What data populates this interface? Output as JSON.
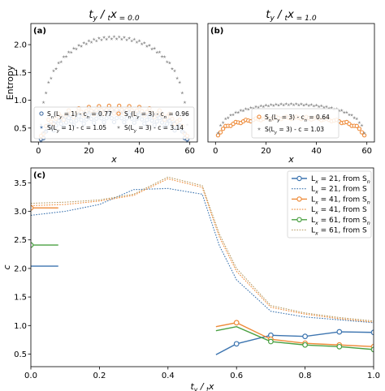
{
  "chart_data": [
    {
      "panel_label": "(a)",
      "type": "scatter",
      "title": "t_y / t_x = 0.0",
      "title_parts": [
        "t",
        "y",
        " / ",
        "t",
        "x",
        " = 0.0"
      ],
      "xlabel": "x",
      "ylabel": "Entropy",
      "xlim": [
        -3,
        63
      ],
      "ylim": [
        0.25,
        2.38
      ],
      "xticks": [
        0,
        20,
        40,
        60
      ],
      "yticks": [
        0.5,
        1.0,
        1.5,
        2.0
      ],
      "yticklabels": [
        "0.5",
        "1.0",
        "1.5",
        "2.0"
      ],
      "legend_position": "bottom",
      "series": [
        {
          "label": "S_n(L_y = 1) - c_n = 0.77",
          "legend_parts": [
            [
              "S",
              "n",
              "(L",
              "y",
              " = 1) - c",
              "n",
              " = 0.77"
            ]
          ],
          "color": "#4a72a6",
          "marker": "circle-open",
          "kind": "entropy",
          "L": 60,
          "c": 0.77,
          "b": 0.3,
          "osc": 0.07,
          "osc_period": 4
        },
        {
          "label": "S_n(L_y = 3) - c_n = 0.96",
          "legend_parts": [
            [
              "S",
              "n",
              "(L",
              "y",
              " = 3) - c",
              "n",
              " = 0.96"
            ]
          ],
          "color": "#ee8a38",
          "marker": "circle-open",
          "kind": "entropy",
          "L": 60,
          "c": 0.96,
          "b": 0.36,
          "osc": 0.07,
          "osc_period": 4
        },
        {
          "label": "S(L_y = 1) - c = 1.05",
          "legend_parts": [
            [
              "S(L",
              "y",
              " = 1) - c = 1.05"
            ]
          ],
          "color": "#4a72a6",
          "marker": "star",
          "kind": "entropy",
          "L": 60,
          "c": 1.05,
          "b": 0.28,
          "osc": 0.02,
          "osc_period": 2
        },
        {
          "label": "S(L_y = 3) - c = 3.14",
          "legend_parts": [
            [
              "S(L",
              "y",
              " = 3) - c = 3.14"
            ]
          ],
          "color": "#8a8a8a",
          "marker": "star",
          "kind": "entropy",
          "L": 60,
          "c": 3.14,
          "b": 0.58,
          "osc": 0.02,
          "osc_period": 2
        }
      ]
    },
    {
      "panel_label": "(b)",
      "type": "scatter",
      "title": "t_y / t_x = 1.0",
      "title_parts": [
        "t",
        "y",
        " / ",
        "t",
        "x",
        " = 1.0"
      ],
      "xlabel": "x",
      "ylabel": "",
      "xlim": [
        -3,
        63
      ],
      "ylim": [
        0.25,
        2.38
      ],
      "xticks": [
        0,
        20,
        40,
        60
      ],
      "yticks": [],
      "legend_position": "bottom",
      "series": [
        {
          "label": "S_n(L_y = 3) - c_n = 0.64",
          "legend_parts": [
            [
              "S",
              "n",
              "(L",
              "y",
              " = 3) - c",
              "n",
              " = 0.64"
            ]
          ],
          "color": "#ee8a38",
          "marker": "circle-open",
          "kind": "entropy",
          "L": 60,
          "c": 0.64,
          "b": 0.37,
          "osc": 0.02,
          "osc_period": 4
        },
        {
          "label": "S(L_y = 3) - c = 1.03",
          "legend_parts": [
            [
              "S(L",
              "y",
              " = 3) - c = 1.03"
            ]
          ],
          "color": "#8a8a8a",
          "marker": "star",
          "kind": "entropy",
          "L": 60,
          "c": 1.03,
          "b": 0.42,
          "osc": 0.01,
          "osc_period": 2
        }
      ]
    },
    {
      "panel_label": "(c)",
      "type": "line",
      "xlabel": "t_y / t_x",
      "xlabel_parts": [
        "t",
        "y",
        " / ",
        "t",
        "x"
      ],
      "ylabel": "c",
      "xlim": [
        0.0,
        1.0
      ],
      "ylim": [
        0.28,
        3.76
      ],
      "xticks": [
        0.0,
        0.2,
        0.4,
        0.6,
        0.8,
        1.0
      ],
      "xticklabels": [
        "0.0",
        "0.2",
        "0.4",
        "0.6",
        "0.8",
        "1.0"
      ],
      "yticks": [
        0.5,
        1.0,
        1.5,
        2.0,
        2.5,
        3.0,
        3.5
      ],
      "yticklabels": [
        "0.5",
        "1.0",
        "1.5",
        "2.0",
        "2.5",
        "3.0",
        "3.5"
      ],
      "legend_position": "top-right",
      "series": [
        {
          "label": "L_x = 21, from S_n",
          "legend_parts": [
            [
              "L",
              "x",
              " = 21, from S",
              "n",
              ""
            ]
          ],
          "color": "#3d75b0",
          "style": "solid",
          "marker": "circle-open",
          "segments": [
            {
              "x": [
                0.0,
                0.08
              ],
              "y": [
                2.04,
                2.04
              ],
              "markers": false
            },
            {
              "x": [
                0.54,
                0.6,
                0.7,
                0.8,
                0.9,
                1.0
              ],
              "y": [
                0.49,
                0.68,
                0.83,
                0.81,
                0.89,
                0.88
              ],
              "markers": [
                1,
                2,
                3,
                4,
                5
              ]
            }
          ]
        },
        {
          "label": "L_x = 21, from S",
          "legend_parts": [
            [
              "L",
              "x",
              " = 21, from S"
            ]
          ],
          "color": "#3d75b0",
          "style": "dotted",
          "x": [
            0.0,
            0.1,
            0.2,
            0.3,
            0.4,
            0.5,
            0.55,
            0.6,
            0.7,
            0.8,
            0.9,
            1.0
          ],
          "y": [
            2.93,
            3.0,
            3.12,
            3.38,
            3.4,
            3.3,
            2.4,
            1.8,
            1.25,
            1.15,
            1.1,
            1.05
          ]
        },
        {
          "label": "L_x = 41, from S_n",
          "legend_parts": [
            [
              "L",
              "x",
              " = 41, from S",
              "n",
              ""
            ]
          ],
          "color": "#ee8a38",
          "style": "solid",
          "marker": "circle-open",
          "segments": [
            {
              "x": [
                0.0,
                0.08
              ],
              "y": [
                3.06,
                3.06
              ],
              "markers": [
                0
              ]
            },
            {
              "x": [
                0.54,
                0.6,
                0.7,
                0.8,
                0.9,
                1.0
              ],
              "y": [
                0.98,
                1.05,
                0.76,
                0.69,
                0.66,
                0.63
              ],
              "markers": [
                1,
                2,
                3,
                4,
                5
              ]
            }
          ]
        },
        {
          "label": "L_x = 41, from S",
          "legend_parts": [
            [
              "L",
              "x",
              " = 41, from S"
            ]
          ],
          "color": "#ee8a38",
          "style": "dotted",
          "x": [
            0.0,
            0.1,
            0.2,
            0.3,
            0.4,
            0.5,
            0.55,
            0.6,
            0.7,
            0.8,
            0.9,
            1.0
          ],
          "y": [
            3.1,
            3.12,
            3.18,
            3.28,
            3.57,
            3.42,
            2.55,
            1.95,
            1.32,
            1.2,
            1.12,
            1.06
          ]
        },
        {
          "label": "L_x = 61, from S_n",
          "legend_parts": [
            [
              "L",
              "x",
              " = 61, from S",
              "n",
              ""
            ]
          ],
          "color": "#4aa042",
          "style": "solid",
          "marker": "circle-open",
          "segments": [
            {
              "x": [
                0.0,
                0.08
              ],
              "y": [
                2.41,
                2.41
              ],
              "markers": [
                0
              ]
            },
            {
              "x": [
                0.54,
                0.6,
                0.7,
                0.8,
                0.9,
                1.0
              ],
              "y": [
                0.91,
                0.98,
                0.72,
                0.66,
                0.63,
                0.58
              ],
              "markers": [
                2,
                3,
                4,
                5
              ]
            }
          ]
        },
        {
          "label": "L_x = 61, from S",
          "legend_parts": [
            [
              "L",
              "x",
              " = 61, from S"
            ]
          ],
          "color": "#b79b63",
          "style": "dotted",
          "x": [
            0.0,
            0.1,
            0.2,
            0.3,
            0.4,
            0.5,
            0.55,
            0.6,
            0.7,
            0.8,
            0.9,
            1.0
          ],
          "y": [
            3.14,
            3.16,
            3.2,
            3.3,
            3.6,
            3.45,
            2.6,
            2.0,
            1.35,
            1.22,
            1.14,
            1.08
          ]
        }
      ]
    }
  ]
}
